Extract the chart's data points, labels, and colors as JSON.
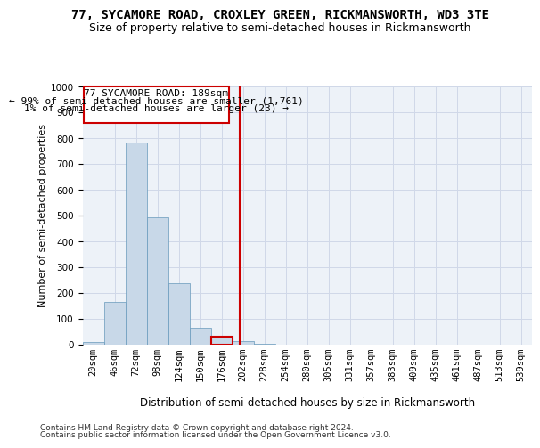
{
  "title": "77, SYCAMORE ROAD, CROXLEY GREEN, RICKMANSWORTH, WD3 3TE",
  "subtitle": "Size of property relative to semi-detached houses in Rickmansworth",
  "xlabel": "Distribution of semi-detached houses by size in Rickmansworth",
  "ylabel": "Number of semi-detached properties",
  "footer_line1": "Contains HM Land Registry data © Crown copyright and database right 2024.",
  "footer_line2": "Contains public sector information licensed under the Open Government Licence v3.0.",
  "annotation_title": "77 SYCAMORE ROAD: 189sqm",
  "annotation_line2": "← 99% of semi-detached houses are smaller (1,761)",
  "annotation_line3": "1% of semi-detached houses are larger (23) →",
  "bar_values": [
    11,
    165,
    783,
    492,
    237,
    65,
    30,
    15,
    3,
    1,
    1,
    0,
    0,
    0,
    0,
    0,
    0,
    0,
    0,
    0,
    0
  ],
  "bar_labels": [
    "20sqm",
    "46sqm",
    "72sqm",
    "98sqm",
    "124sqm",
    "150sqm",
    "176sqm",
    "202sqm",
    "228sqm",
    "254sqm",
    "280sqm",
    "305sqm",
    "331sqm",
    "357sqm",
    "383sqm",
    "409sqm",
    "435sqm",
    "461sqm",
    "487sqm",
    "513sqm",
    "539sqm"
  ],
  "n_bars": 21,
  "bar_color": "#c8d8e8",
  "bar_edge_color": "#6699bb",
  "highlight_bar_index": 6,
  "highlight_bar_color": "#cc0000",
  "vline_x": 6.85,
  "vline_color": "#cc0000",
  "ylim": [
    0,
    1000
  ],
  "yticks": [
    0,
    100,
    200,
    300,
    400,
    500,
    600,
    700,
    800,
    900,
    1000
  ],
  "grid_color": "#d0d8e8",
  "background_color": "#edf2f8",
  "title_fontsize": 10,
  "subtitle_fontsize": 9,
  "ylabel_fontsize": 8,
  "xlabel_fontsize": 8.5,
  "tick_fontsize": 7.5,
  "annotation_fontsize": 8,
  "footer_fontsize": 6.5
}
